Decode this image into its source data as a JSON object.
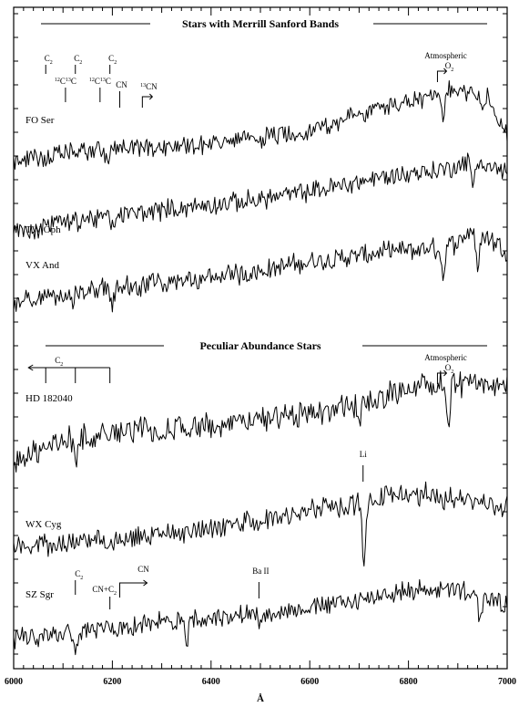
{
  "chart_data": {
    "type": "line",
    "xlabel": "Å",
    "xlim": [
      6000,
      7000
    ],
    "x_ticks": [
      6000,
      6200,
      6400,
      6600,
      6800,
      7000
    ],
    "sections": [
      {
        "title": "Stars with Merrill Sanford Bands"
      },
      {
        "title": "Peculiar Abundance Stars"
      }
    ],
    "series": [
      {
        "name": "FO Ser",
        "anchors": [
          [
            6000,
            0.18
          ],
          [
            6150,
            0.3
          ],
          [
            6300,
            0.34
          ],
          [
            6450,
            0.4
          ],
          [
            6600,
            0.52
          ],
          [
            6750,
            0.78
          ],
          [
            6860,
            0.9
          ],
          [
            6900,
            0.98
          ],
          [
            6960,
            0.92
          ],
          [
            7000,
            0.45
          ]
        ],
        "dips": [
          [
            6190,
            0.1
          ],
          [
            6870,
            0.3
          ],
          [
            6950,
            0.25
          ]
        ]
      },
      {
        "name": "TW Oph",
        "anchors": [
          [
            6000,
            0.15
          ],
          [
            6150,
            0.3
          ],
          [
            6300,
            0.4
          ],
          [
            6450,
            0.48
          ],
          [
            6600,
            0.6
          ],
          [
            6750,
            0.76
          ],
          [
            6880,
            0.85
          ],
          [
            6930,
            0.95
          ],
          [
            7000,
            0.8
          ]
        ],
        "dips": [
          [
            6200,
            0.15
          ],
          [
            6930,
            0.3
          ]
        ]
      },
      {
        "name": "VX And",
        "anchors": [
          [
            6000,
            0.12
          ],
          [
            6150,
            0.25
          ],
          [
            6300,
            0.32
          ],
          [
            6450,
            0.42
          ],
          [
            6600,
            0.55
          ],
          [
            6750,
            0.65
          ],
          [
            6880,
            0.7
          ],
          [
            6930,
            0.9
          ],
          [
            7000,
            0.68
          ]
        ],
        "dips": [
          [
            6120,
            0.12
          ],
          [
            6200,
            0.18
          ],
          [
            6870,
            0.3
          ],
          [
            6940,
            0.4
          ]
        ]
      },
      {
        "name": "HD 182040",
        "anchors": [
          [
            6000,
            0.12
          ],
          [
            6100,
            0.3
          ],
          [
            6250,
            0.4
          ],
          [
            6400,
            0.42
          ],
          [
            6550,
            0.5
          ],
          [
            6700,
            0.62
          ],
          [
            6800,
            0.75
          ],
          [
            6880,
            0.8
          ],
          [
            7000,
            0.78
          ]
        ],
        "dips": [
          [
            6125,
            0.2
          ],
          [
            6300,
            0.15
          ],
          [
            6700,
            0.2
          ],
          [
            6880,
            0.4
          ]
        ]
      },
      {
        "name": "WX Cyg",
        "anchors": [
          [
            6000,
            0.15
          ],
          [
            6150,
            0.25
          ],
          [
            6300,
            0.3
          ],
          [
            6450,
            0.4
          ],
          [
            6600,
            0.55
          ],
          [
            6700,
            0.62
          ],
          [
            6750,
            0.7
          ],
          [
            6850,
            0.72
          ],
          [
            7000,
            0.58
          ]
        ],
        "dips": [
          [
            6710,
            0.55
          ],
          [
            6870,
            0.12
          ]
        ]
      },
      {
        "name": "SZ Sgr",
        "anchors": [
          [
            6000,
            0.15
          ],
          [
            6150,
            0.25
          ],
          [
            6250,
            0.32
          ],
          [
            6400,
            0.4
          ],
          [
            6550,
            0.48
          ],
          [
            6700,
            0.6
          ],
          [
            6800,
            0.72
          ],
          [
            6900,
            0.72
          ],
          [
            7000,
            0.55
          ]
        ],
        "dips": [
          [
            6125,
            0.25
          ],
          [
            6350,
            0.25
          ],
          [
            6500,
            0.15
          ],
          [
            6945,
            0.3
          ]
        ]
      }
    ],
    "annotations": {
      "top_lines": [
        {
          "label": "C2",
          "x": 6065
        },
        {
          "label": "C2",
          "x": 6125
        },
        {
          "label": "C2",
          "x": 6195
        }
      ],
      "top_isotopes": [
        {
          "label": "12C13C",
          "x": 6105
        },
        {
          "label": "12C13C",
          "x": 6175
        }
      ],
      "top_cn": {
        "label": "CN",
        "x": 6215
      },
      "top_13cn": {
        "label": "13CN",
        "x": 6270
      },
      "atmospheric_top": {
        "label": "Atmospheric",
        "sub": "O2",
        "x": 6868
      },
      "pec_c2": {
        "label": "C2",
        "x_start": 6195,
        "x_end": 6030,
        "ticks": [
          6065,
          6125,
          6195
        ]
      },
      "atmospheric_pec": {
        "label": "Atmospheric",
        "sub": "O2",
        "x": 6868
      },
      "li": {
        "label": "Li",
        "x": 6708
      },
      "sz_c2": {
        "label": "C2",
        "x": 6125
      },
      "sz_cncc": {
        "label": "CN+C2",
        "x": 6195
      },
      "sz_cn": {
        "label": "CN",
        "x": 6215
      },
      "ba": {
        "label": "Ba II",
        "x": 6497
      }
    }
  }
}
